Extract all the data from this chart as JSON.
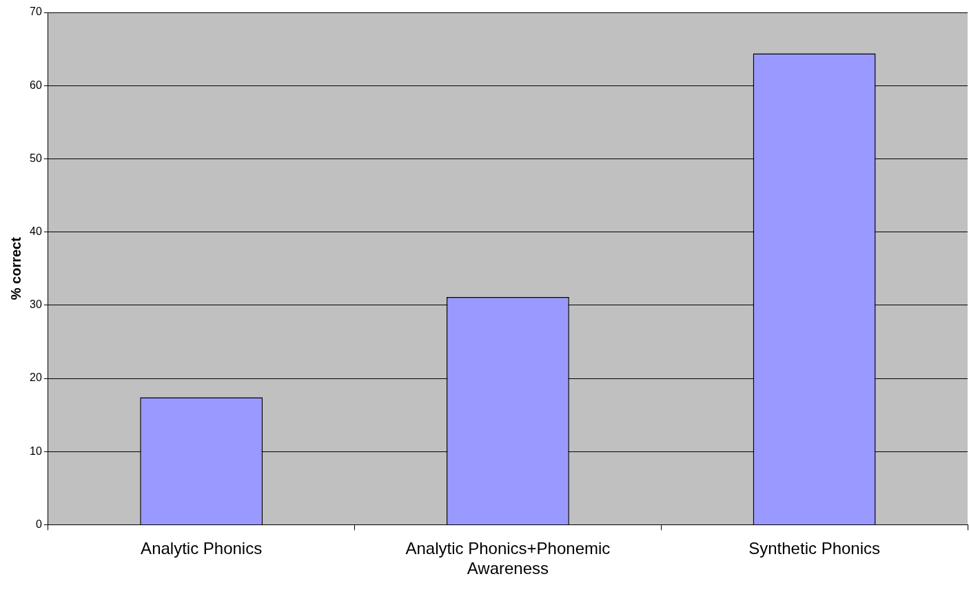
{
  "chart_data": {
    "type": "bar",
    "ylabel": "% correct",
    "categories": [
      "Analytic Phonics",
      "Analytic Phonics+Phonemic Awareness",
      "Synthetic Phonics"
    ],
    "values": [
      17.4,
      31.1,
      64.4
    ],
    "color": "#9999ff",
    "ylim": [
      0,
      70
    ],
    "yticks": [
      0,
      10,
      20,
      30,
      40,
      50,
      60,
      70
    ],
    "grid": "y",
    "legend": false
  }
}
